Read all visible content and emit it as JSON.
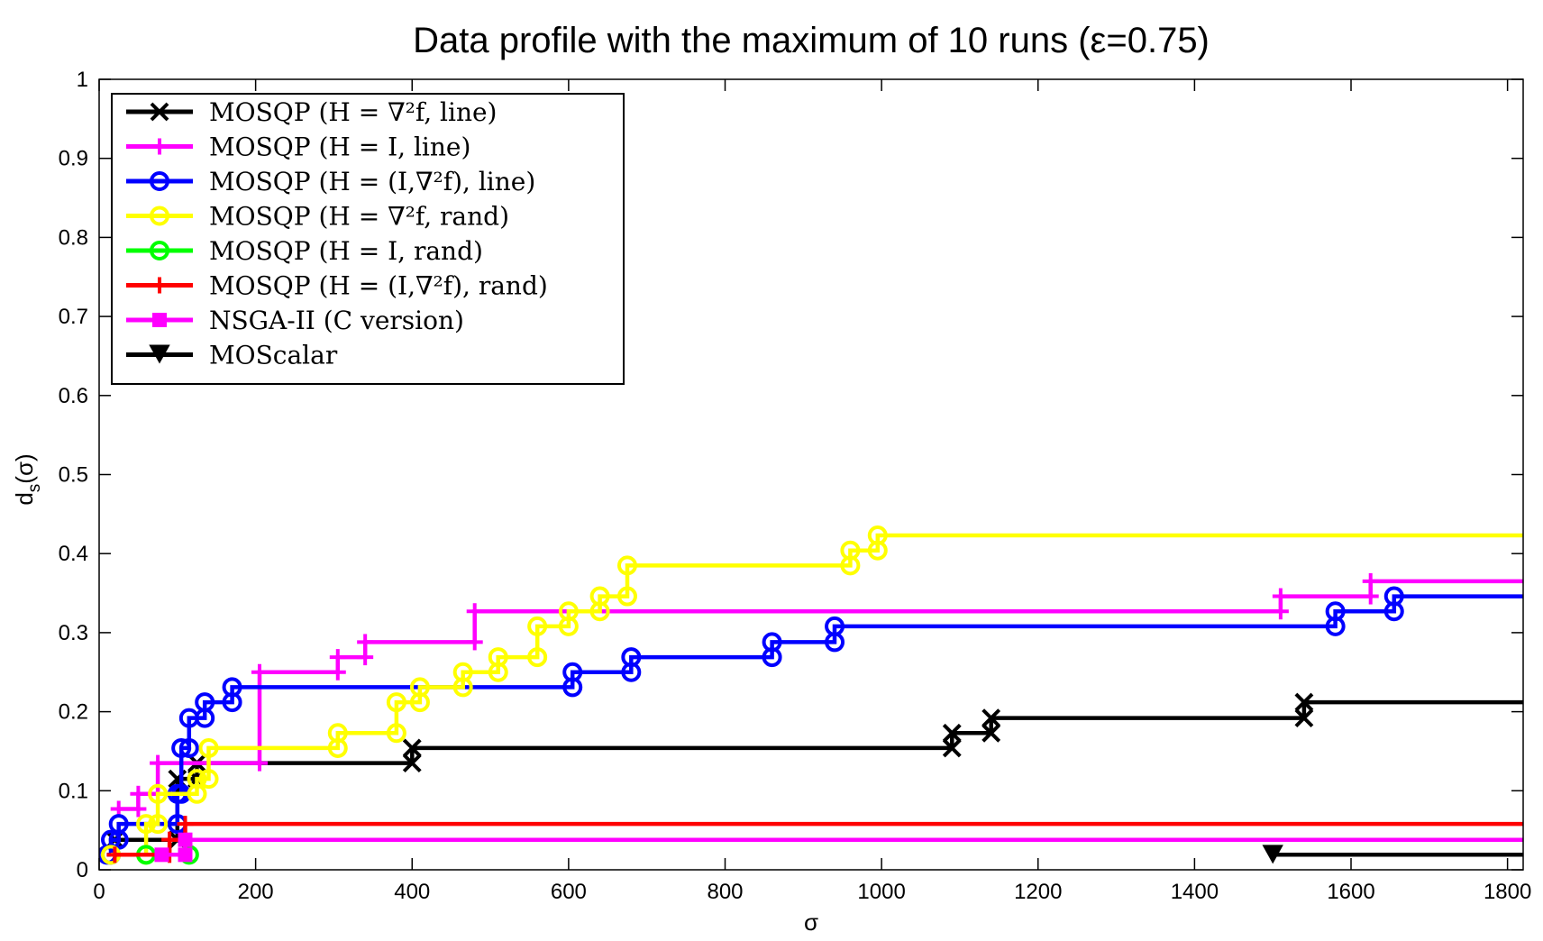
{
  "chart_data": {
    "type": "line",
    "step": true,
    "title": "Data profile with the maximum of 10 runs (ε=0.75)",
    "xlabel": "σ",
    "ylabel": "d_s(σ)",
    "xlim": [
      0,
      1820
    ],
    "ylim": [
      0,
      1
    ],
    "x_ticks": [
      0,
      200,
      400,
      600,
      800,
      1000,
      1200,
      1400,
      1600,
      1800
    ],
    "y_ticks": [
      0,
      0.1,
      0.2,
      0.3,
      0.4,
      0.5,
      0.6,
      0.7,
      0.8,
      0.9,
      1
    ],
    "x_tick_labels": [
      "0",
      "200",
      "400",
      "600",
      "800",
      "1000",
      "1200",
      "1400",
      "1600",
      "1800"
    ],
    "y_tick_labels": [
      "0",
      "0.1",
      "0.2",
      "0.3",
      "0.4",
      "0.5",
      "0.6",
      "0.7",
      "0.8",
      "0.9",
      "1"
    ],
    "grid": false,
    "legend_position": "top-left",
    "series": [
      {
        "name": "MOSQP (H = ∇²f, line)",
        "color": "#000000",
        "marker": "x",
        "points": [
          [
            20,
            0.038
          ],
          [
            100,
            0.038
          ],
          [
            100,
            0.115
          ],
          [
            125,
            0.115
          ],
          [
            125,
            0.135
          ],
          [
            400,
            0.135
          ],
          [
            400,
            0.154
          ],
          [
            1090,
            0.154
          ],
          [
            1090,
            0.173
          ],
          [
            1140,
            0.173
          ],
          [
            1140,
            0.192
          ],
          [
            1540,
            0.192
          ],
          [
            1540,
            0.212
          ],
          [
            1820,
            0.212
          ]
        ]
      },
      {
        "name": "MOSQP (H = I, line)",
        "color": "#ff00ff",
        "marker": "+",
        "points": [
          [
            25,
            0.077
          ],
          [
            50,
            0.077
          ],
          [
            50,
            0.096
          ],
          [
            75,
            0.096
          ],
          [
            75,
            0.135
          ],
          [
            205,
            0.135
          ],
          [
            205,
            0.25
          ],
          [
            305,
            0.25
          ],
          [
            305,
            0.269
          ],
          [
            340,
            0.269
          ],
          [
            340,
            0.288
          ],
          [
            480,
            0.288
          ],
          [
            480,
            0.327
          ],
          [
            1510,
            0.327
          ],
          [
            1510,
            0.346
          ],
          [
            1625,
            0.346
          ],
          [
            1625,
            0.365
          ],
          [
            1820,
            0.365
          ]
        ]
      },
      {
        "name": "MOSQP (H = (I,∇²f), line)",
        "color": "#0000ff",
        "marker": "o",
        "points": [
          [
            10,
            0.019
          ],
          [
            15,
            0.019
          ],
          [
            15,
            0.038
          ],
          [
            25,
            0.038
          ],
          [
            25,
            0.058
          ],
          [
            100,
            0.058
          ],
          [
            100,
            0.096
          ],
          [
            105,
            0.096
          ],
          [
            105,
            0.154
          ],
          [
            115,
            0.154
          ],
          [
            115,
            0.192
          ],
          [
            135,
            0.192
          ],
          [
            135,
            0.212
          ],
          [
            170,
            0.212
          ],
          [
            170,
            0.231
          ],
          [
            605,
            0.231
          ],
          [
            605,
            0.25
          ],
          [
            680,
            0.25
          ],
          [
            680,
            0.269
          ],
          [
            860,
            0.269
          ],
          [
            860,
            0.288
          ],
          [
            940,
            0.288
          ],
          [
            940,
            0.308
          ],
          [
            1580,
            0.308
          ],
          [
            1580,
            0.327
          ],
          [
            1655,
            0.327
          ],
          [
            1655,
            0.346
          ],
          [
            1820,
            0.346
          ]
        ]
      },
      {
        "name": "MOSQP (H = ∇²f, rand)",
        "color": "#ffff00",
        "marker": "o",
        "points": [
          [
            15,
            0.019
          ],
          [
            60,
            0.019
          ],
          [
            60,
            0.058
          ],
          [
            75,
            0.058
          ],
          [
            75,
            0.096
          ],
          [
            125,
            0.096
          ],
          [
            125,
            0.115
          ],
          [
            140,
            0.115
          ],
          [
            140,
            0.154
          ],
          [
            305,
            0.154
          ],
          [
            305,
            0.173
          ],
          [
            380,
            0.173
          ],
          [
            380,
            0.212
          ],
          [
            410,
            0.212
          ],
          [
            410,
            0.231
          ],
          [
            465,
            0.231
          ],
          [
            465,
            0.25
          ],
          [
            510,
            0.25
          ],
          [
            510,
            0.269
          ],
          [
            560,
            0.269
          ],
          [
            560,
            0.308
          ],
          [
            600,
            0.308
          ],
          [
            600,
            0.327
          ],
          [
            640,
            0.327
          ],
          [
            640,
            0.346
          ],
          [
            675,
            0.346
          ],
          [
            675,
            0.385
          ],
          [
            960,
            0.385
          ],
          [
            960,
            0.404
          ],
          [
            995,
            0.404
          ],
          [
            995,
            0.423
          ],
          [
            1820,
            0.423
          ]
        ]
      },
      {
        "name": "MOSQP (H = I, rand)",
        "color": "#00ff00",
        "marker": "o",
        "points": [
          [
            60,
            0.019
          ],
          [
            115,
            0.019
          ]
        ]
      },
      {
        "name": "MOSQP (H = (I,∇²f), rand)",
        "color": "#ff0000",
        "marker": "+",
        "points": [
          [
            20,
            0.019
          ],
          [
            90,
            0.019
          ],
          [
            90,
            0.038
          ],
          [
            110,
            0.038
          ],
          [
            110,
            0.058
          ],
          [
            1820,
            0.058
          ]
        ]
      },
      {
        "name": "NSGA-II (C version)",
        "color": "#ff00ff",
        "marker": "s",
        "points": [
          [
            80,
            0.019
          ],
          [
            110,
            0.019
          ],
          [
            110,
            0.038
          ],
          [
            1820,
            0.038
          ]
        ]
      },
      {
        "name": "MOScalar",
        "color": "#000000",
        "marker": "v",
        "points": [
          [
            1500,
            0.019
          ],
          [
            1820,
            0.019
          ]
        ]
      }
    ]
  }
}
